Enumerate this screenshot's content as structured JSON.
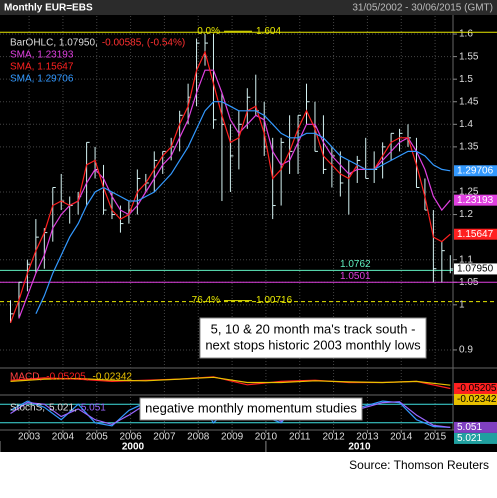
{
  "header": {
    "title": "Monthly EUR=EBS",
    "range": "31/05/2002 - 30/06/2015 (GMT)"
  },
  "chart_data": {
    "type": "ohlc",
    "x": [
      2002.45,
      2002.7,
      2002.95,
      2003.2,
      2003.45,
      2003.7,
      2003.95,
      2004.2,
      2004.45,
      2004.7,
      2004.95,
      2005.2,
      2005.45,
      2005.7,
      2005.95,
      2006.2,
      2006.45,
      2006.7,
      2006.95,
      2007.2,
      2007.45,
      2007.7,
      2007.95,
      2008.2,
      2008.45,
      2008.7,
      2008.95,
      2009.2,
      2009.45,
      2009.7,
      2009.95,
      2010.2,
      2010.45,
      2010.7,
      2010.95,
      2011.2,
      2011.45,
      2011.7,
      2011.95,
      2012.2,
      2012.45,
      2012.7,
      2012.95,
      2013.2,
      2013.45,
      2013.7,
      2013.95,
      2014.2,
      2014.45,
      2014.7,
      2014.95,
      2015.2,
      2015.45
    ],
    "xlim": [
      2002.14,
      2015.53
    ],
    "xticks": [
      2003,
      2004,
      2005,
      2006,
      2007,
      2008,
      2009,
      2010,
      2011,
      2012,
      2013,
      2014,
      2015
    ],
    "decades": [
      2000,
      2010
    ],
    "ylim": [
      0.86,
      1.64
    ],
    "yticks": [
      0.9,
      1,
      1.05,
      1.1,
      1.2,
      1.25,
      1.35,
      1.4,
      1.45,
      1.5,
      1.55,
      1.6
    ],
    "grid": true,
    "ohlc": {
      "name": "BarOHLC, 1.07950,",
      "change": "-0.00585, (-0.54%)",
      "color": "#d4f2f2",
      "change_color": "#ff3030",
      "last_label": "1.07950",
      "high": [
        1.01,
        1.05,
        1.1,
        1.19,
        1.17,
        1.26,
        1.29,
        1.24,
        1.25,
        1.36,
        1.35,
        1.31,
        1.25,
        1.22,
        1.23,
        1.3,
        1.29,
        1.34,
        1.34,
        1.37,
        1.43,
        1.49,
        1.59,
        1.6,
        1.6,
        1.47,
        1.4,
        1.43,
        1.48,
        1.51,
        1.45,
        1.37,
        1.37,
        1.42,
        1.42,
        1.49,
        1.45,
        1.42,
        1.35,
        1.34,
        1.32,
        1.33,
        1.37,
        1.34,
        1.36,
        1.38,
        1.39,
        1.4,
        1.37,
        1.28,
        1.21,
        1.14,
        1.11
      ],
      "low": [
        0.96,
        0.97,
        1.03,
        1.07,
        1.08,
        1.14,
        1.21,
        1.18,
        1.2,
        1.22,
        1.28,
        1.2,
        1.19,
        1.16,
        1.18,
        1.2,
        1.25,
        1.25,
        1.29,
        1.32,
        1.34,
        1.4,
        1.44,
        1.53,
        1.39,
        1.23,
        1.25,
        1.3,
        1.39,
        1.42,
        1.33,
        1.19,
        1.22,
        1.29,
        1.29,
        1.4,
        1.34,
        1.29,
        1.26,
        1.24,
        1.2,
        1.27,
        1.28,
        1.27,
        1.28,
        1.32,
        1.34,
        1.35,
        1.26,
        1.21,
        1.05,
        1.05,
        1.07
      ],
      "close": [
        0.98,
        1.05,
        1.09,
        1.15,
        1.16,
        1.26,
        1.23,
        1.22,
        1.24,
        1.36,
        1.3,
        1.21,
        1.2,
        1.18,
        1.21,
        1.28,
        1.27,
        1.32,
        1.34,
        1.35,
        1.42,
        1.46,
        1.58,
        1.58,
        1.41,
        1.4,
        1.33,
        1.4,
        1.46,
        1.43,
        1.35,
        1.22,
        1.36,
        1.34,
        1.42,
        1.45,
        1.34,
        1.3,
        1.33,
        1.27,
        1.29,
        1.32,
        1.28,
        1.3,
        1.35,
        1.38,
        1.38,
        1.37,
        1.26,
        1.21,
        1.08,
        1.12,
        1.0795
      ]
    },
    "series": [
      {
        "name": "SMA, 1.23193",
        "color": "#e040e0",
        "values": [
          null,
          0.97,
          1.02,
          1.07,
          1.11,
          1.17,
          1.2,
          1.22,
          1.23,
          1.27,
          1.3,
          1.28,
          1.24,
          1.21,
          1.2,
          1.22,
          1.25,
          1.28,
          1.31,
          1.33,
          1.37,
          1.41,
          1.47,
          1.52,
          1.52,
          1.47,
          1.41,
          1.38,
          1.4,
          1.42,
          1.41,
          1.34,
          1.31,
          1.32,
          1.36,
          1.4,
          1.4,
          1.36,
          1.33,
          1.31,
          1.29,
          1.3,
          1.3,
          1.3,
          1.32,
          1.34,
          1.36,
          1.37,
          1.34,
          1.3,
          1.24,
          1.21,
          1.23193
        ]
      },
      {
        "name": "SMA, 1.15647",
        "color": "#ff2020",
        "values": [
          0.96,
          1.01,
          1.07,
          1.12,
          1.16,
          1.22,
          1.23,
          1.22,
          1.23,
          1.31,
          1.32,
          1.26,
          1.21,
          1.19,
          1.2,
          1.25,
          1.27,
          1.3,
          1.33,
          1.35,
          1.4,
          1.44,
          1.52,
          1.56,
          1.49,
          1.42,
          1.36,
          1.37,
          1.43,
          1.44,
          1.38,
          1.28,
          1.3,
          1.34,
          1.39,
          1.43,
          1.39,
          1.33,
          1.31,
          1.29,
          1.28,
          1.31,
          1.3,
          1.3,
          1.33,
          1.36,
          1.37,
          1.37,
          1.31,
          1.24,
          1.15,
          1.14,
          1.15647
        ]
      },
      {
        "name": "SMA, 1.29706",
        "color": "#3399ff",
        "values": [
          null,
          null,
          null,
          0.98,
          1.02,
          1.07,
          1.11,
          1.15,
          1.18,
          1.22,
          1.25,
          1.26,
          1.25,
          1.24,
          1.23,
          1.23,
          1.24,
          1.25,
          1.27,
          1.29,
          1.32,
          1.35,
          1.39,
          1.43,
          1.45,
          1.45,
          1.44,
          1.43,
          1.43,
          1.43,
          1.42,
          1.4,
          1.38,
          1.37,
          1.37,
          1.38,
          1.38,
          1.37,
          1.35,
          1.33,
          1.32,
          1.31,
          1.3,
          1.3,
          1.31,
          1.32,
          1.33,
          1.34,
          1.34,
          1.33,
          1.31,
          1.3,
          1.29706
        ]
      }
    ],
    "levels": [
      {
        "value": 1.604,
        "prefix": "0.0%",
        "color": "#e8e800"
      },
      {
        "value": 1.0762,
        "color": "#60f0c0"
      },
      {
        "value": 1.0501,
        "color": "#e040e0"
      },
      {
        "value": 1.00716,
        "prefix": "76.4%",
        "color": "#e8e800",
        "dashed": true
      }
    ],
    "annotations": [
      {
        "lines": [
          "5, 10 & 20 month ma's track south -",
          "next stops historic 2003 monthly lows"
        ]
      },
      {
        "lines": [
          "negative monthly momentum studies"
        ]
      }
    ],
    "macd": {
      "type": "line",
      "label": "MACD,",
      "x": [
        2002.45,
        2003.45,
        2004.45,
        2005.45,
        2006.45,
        2007.45,
        2008.45,
        2009.45,
        2010.45,
        2011.45,
        2012.45,
        2013.45,
        2014.45,
        2015.45
      ],
      "ylim": [
        -0.1,
        0.1
      ],
      "series": [
        {
          "name": "-0.05205,",
          "color": "#ff2020",
          "values": [
            0.02,
            0.04,
            0.03,
            0.01,
            0.02,
            0.03,
            0.05,
            -0.02,
            0.01,
            0.02,
            0,
            0,
            0.01,
            -0.05205
          ]
        },
        {
          "name": "-0.02342",
          "color": "#e8c000",
          "values": [
            0.01,
            0.03,
            0.035,
            0.02,
            0.015,
            0.03,
            0.045,
            0,
            0,
            0.015,
            0.005,
            0,
            0.01,
            -0.02342
          ]
        }
      ]
    },
    "stoch": {
      "type": "line",
      "label": "StochS,",
      "x": [
        2002.45,
        2002.95,
        2003.45,
        2003.95,
        2004.45,
        2004.95,
        2005.45,
        2005.95,
        2006.45,
        2006.95,
        2007.45,
        2007.95,
        2008.45,
        2008.95,
        2009.45,
        2009.95,
        2010.45,
        2010.95,
        2011.45,
        2011.95,
        2012.45,
        2012.95,
        2013.45,
        2013.95,
        2014.45,
        2014.95,
        2015.45
      ],
      "ylim": [
        0,
        100
      ],
      "levels": [
        20,
        80
      ],
      "level_color": "#40e0e0",
      "series": [
        {
          "name": "5.021,",
          "color": "#3399ff",
          "box_color": "#20a0a0",
          "values": [
            60,
            90,
            70,
            30,
            80,
            20,
            10,
            60,
            85,
            90,
            75,
            95,
            20,
            70,
            85,
            40,
            20,
            80,
            30,
            40,
            60,
            75,
            90,
            85,
            30,
            8,
            5.021
          ]
        },
        {
          "name": "5.051",
          "color": "#9966ff",
          "box_color": "#8040c0",
          "values": [
            50,
            85,
            80,
            40,
            65,
            30,
            15,
            45,
            80,
            88,
            80,
            90,
            35,
            55,
            80,
            55,
            25,
            65,
            40,
            35,
            55,
            70,
            85,
            88,
            45,
            12,
            5.051
          ]
        }
      ]
    }
  },
  "source": "Source: Thomson Reuters"
}
